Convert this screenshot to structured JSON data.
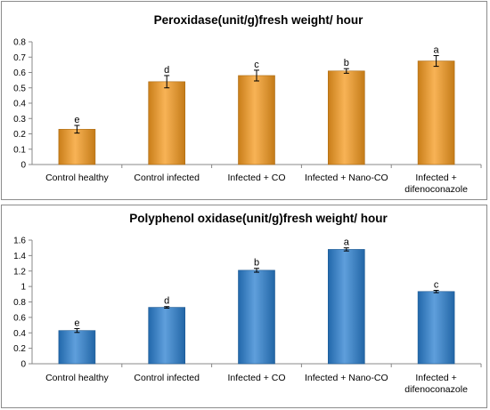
{
  "chart_data": [
    {
      "type": "bar",
      "title": "Peroxidase(unit/g)fresh weight/ hour",
      "categories": [
        [
          "Control healthy"
        ],
        [
          "Control infected"
        ],
        [
          "Infected + CO"
        ],
        [
          "Infected + Nano-CO"
        ],
        [
          "Infected +",
          "difenoconazole"
        ]
      ],
      "values": [
        0.23,
        0.54,
        0.58,
        0.61,
        0.675
      ],
      "errors": [
        0.025,
        0.04,
        0.035,
        0.015,
        0.035
      ],
      "labels": [
        "e",
        "d",
        "c",
        "b",
        "a"
      ],
      "ylim": [
        0,
        0.8
      ],
      "yticks": [
        "0",
        "0.1",
        "0.2",
        "0.3",
        "0.4",
        "0.5",
        "0.6",
        "0.7",
        "0.8"
      ],
      "bar_color": "#f59a1e",
      "xlabel": "",
      "ylabel": "",
      "grid": false
    },
    {
      "type": "bar",
      "title": "Polyphenol oxidase(unit/g)fresh weight/ hour",
      "categories": [
        [
          "Control healthy"
        ],
        [
          "Control infected"
        ],
        [
          "Infected + CO"
        ],
        [
          "Infected + Nano-CO"
        ],
        [
          "Infected +",
          "difenoconazole"
        ]
      ],
      "values": [
        0.43,
        0.73,
        1.21,
        1.48,
        0.935
      ],
      "errors": [
        0.025,
        0.01,
        0.025,
        0.02,
        0.015
      ],
      "labels": [
        "e",
        "d",
        "b",
        "a",
        "c"
      ],
      "ylim": [
        0,
        1.6
      ],
      "yticks": [
        "0",
        "0.2",
        "0.4",
        "0.6",
        "0.8",
        "1",
        "1.2",
        "1.4",
        "1.6"
      ],
      "bar_color": "#2a7fd0",
      "xlabel": "",
      "ylabel": "",
      "grid": false
    }
  ]
}
